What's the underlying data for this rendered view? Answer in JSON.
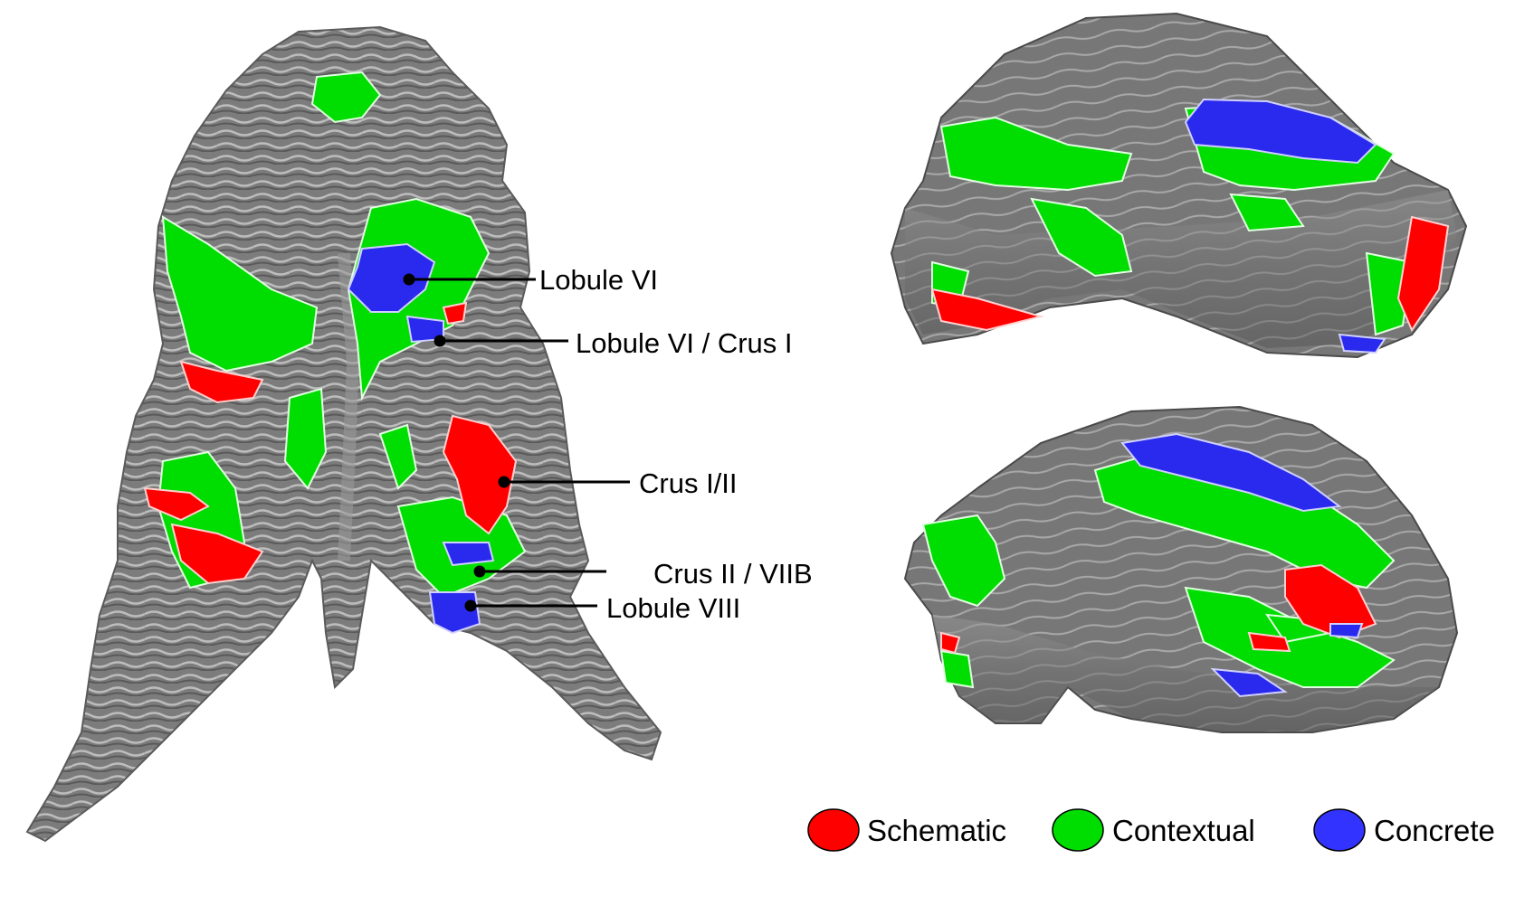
{
  "annotations": {
    "lobule_vi": "Lobule VI",
    "lobule_vi_crus_i": "Lobule VI / Crus I",
    "crus_i_ii": "Crus I/II",
    "crus_ii_viib": "Crus II / VIIB",
    "lobule_viii": "Lobule VIII"
  },
  "legend": [
    {
      "label": "Schematic",
      "color": "#ff0000"
    },
    {
      "label": "Contextual",
      "color": "#00dd00"
    },
    {
      "label": "Concrete",
      "color": "#3333ff"
    }
  ],
  "colors": {
    "surface": "#7a7a7a",
    "surface_dark": "#5e5e5e",
    "fold_highlight": "#c8c8c8",
    "schematic": "#ff0000",
    "contextual": "#00dd00",
    "concrete": "#2a2aee"
  }
}
